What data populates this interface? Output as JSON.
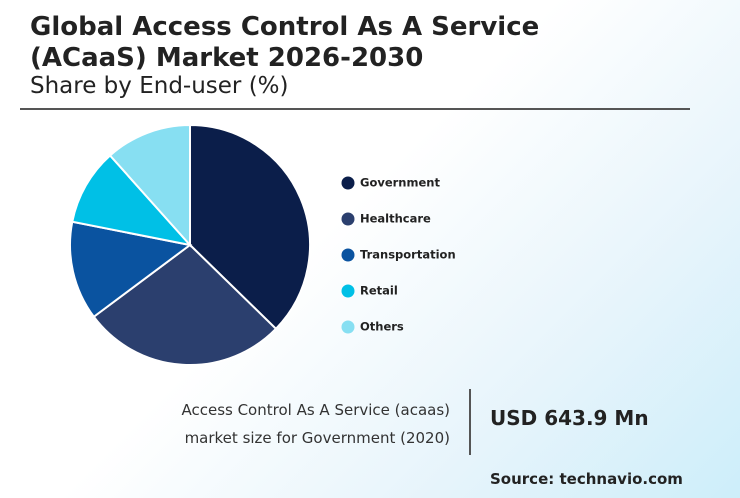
{
  "chart_data": {
    "type": "pie",
    "title": "Global Access Control As A Service (ACaaS) Market 2026-2030",
    "subtitle": "Share by End-user (%)",
    "categories": [
      "Government",
      "Healthcare",
      "Transportation",
      "Retail",
      "Others"
    ],
    "values": [
      37.3,
      27.5,
      13.3,
      10.3,
      11.6
    ],
    "colors": [
      "#0b1e4a",
      "#2b3f6e",
      "#0a53a0",
      "#00c0e6",
      "#87dff2"
    ],
    "legend": "right",
    "annotation_lines": [
      "Access Control As A Service (acaas)",
      "market size for Government (2020)"
    ],
    "highlight": "USD 643.9 Mn",
    "source": "Source: technavio.com"
  }
}
